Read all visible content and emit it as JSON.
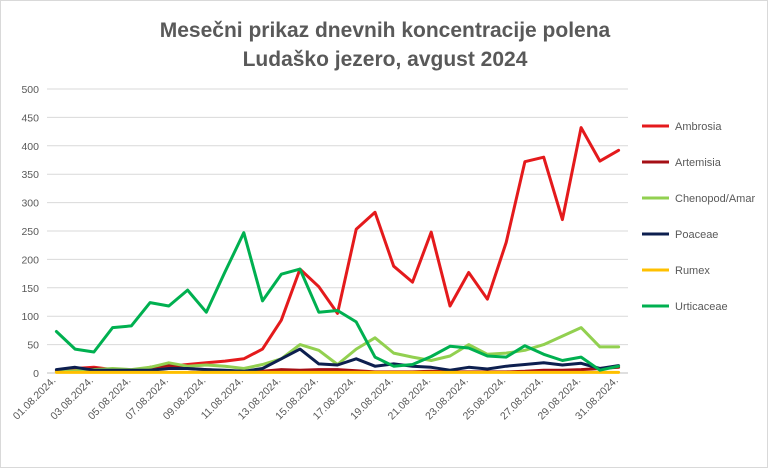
{
  "chart_data": {
    "type": "line",
    "title": [
      "Mesečni prikaz dnevnih koncentracije polena",
      "Ludaško jezero, avgust 2024"
    ],
    "xlabel": "",
    "ylabel": "",
    "ylim": [
      0,
      500
    ],
    "y_ticks": [
      "0",
      "50",
      "100",
      "150",
      "200",
      "250",
      "300",
      "350",
      "400",
      "450",
      "500"
    ],
    "grid": true,
    "legend_position": "right",
    "categories": [
      "01.08.2024.",
      "02.08.2024.",
      "03.08.2024.",
      "04.08.2024.",
      "05.08.2024.",
      "06.08.2024.",
      "07.08.2024.",
      "08.08.2024.",
      "09.08.2024.",
      "10.08.2024.",
      "11.08.2024.",
      "12.08.2024.",
      "13.08.2024.",
      "14.08.2024.",
      "15.08.2024.",
      "16.08.2024.",
      "17.08.2024.",
      "18.08.2024.",
      "19.08.2024.",
      "20.08.2024.",
      "21.08.2024.",
      "22.08.2024.",
      "23.08.2024.",
      "24.08.2024.",
      "25.08.2024.",
      "26.08.2024.",
      "27.08.2024.",
      "28.08.2024.",
      "29.08.2024.",
      "30.08.2024.",
      "31.08.2024."
    ],
    "x_tick_labels": [
      "01.08.2024.",
      "03.08.2024.",
      "05.08.2024.",
      "07.08.2024.",
      "09.08.2024.",
      "11.08.2024.",
      "13.08.2024.",
      "15.08.2024.",
      "17.08.2024.",
      "19.08.2024.",
      "21.08.2024.",
      "23.08.2024.",
      "25.08.2024.",
      "27.08.2024.",
      "29.08.2024.",
      "31.08.2024."
    ],
    "series": [
      {
        "name": "Ambrosia",
        "color": "#e41a1c",
        "values": [
          5,
          8,
          10,
          6,
          5,
          8,
          12,
          15,
          18,
          21,
          25,
          42,
          93,
          183,
          152,
          105,
          253,
          283,
          188,
          160,
          248,
          118,
          177,
          130,
          230,
          372,
          380,
          270,
          432,
          373,
          392
        ]
      },
      {
        "name": "Artemisia",
        "color": "#a50f15",
        "values": [
          3,
          3,
          8,
          5,
          3,
          10,
          14,
          8,
          6,
          4,
          3,
          3,
          6,
          5,
          6,
          6,
          4,
          2,
          2,
          2,
          3,
          2,
          2,
          2,
          2,
          3,
          5,
          5,
          6,
          8,
          10
        ]
      },
      {
        "name": "Chenopod/Amar",
        "color": "#92d050",
        "values": [
          2,
          4,
          6,
          8,
          6,
          10,
          18,
          12,
          14,
          12,
          8,
          15,
          25,
          50,
          40,
          15,
          42,
          62,
          35,
          28,
          22,
          30,
          50,
          33,
          35,
          40,
          50,
          65,
          80,
          46,
          46
        ]
      },
      {
        "name": "Poaceae",
        "color": "#0d1f4f",
        "values": [
          6,
          10,
          5,
          5,
          5,
          5,
          8,
          8,
          6,
          5,
          3,
          8,
          25,
          42,
          16,
          14,
          25,
          12,
          16,
          12,
          10,
          5,
          10,
          7,
          12,
          15,
          18,
          14,
          17,
          8,
          13
        ]
      },
      {
        "name": "Rumex",
        "color": "#ffc000",
        "values": [
          1,
          1,
          1,
          1,
          1,
          1,
          1,
          1,
          1,
          1,
          1,
          1,
          1,
          1,
          1,
          1,
          1,
          1,
          1,
          1,
          1,
          1,
          1,
          1,
          1,
          1,
          1,
          1,
          1,
          1,
          1
        ]
      },
      {
        "name": "Urticaceae",
        "color": "#00b050",
        "values": [
          73,
          42,
          37,
          80,
          83,
          124,
          118,
          146,
          107,
          178,
          247,
          127,
          174,
          183,
          107,
          110,
          90,
          28,
          12,
          15,
          29,
          47,
          44,
          30,
          28,
          48,
          33,
          22,
          28,
          5,
          12
        ]
      }
    ]
  }
}
